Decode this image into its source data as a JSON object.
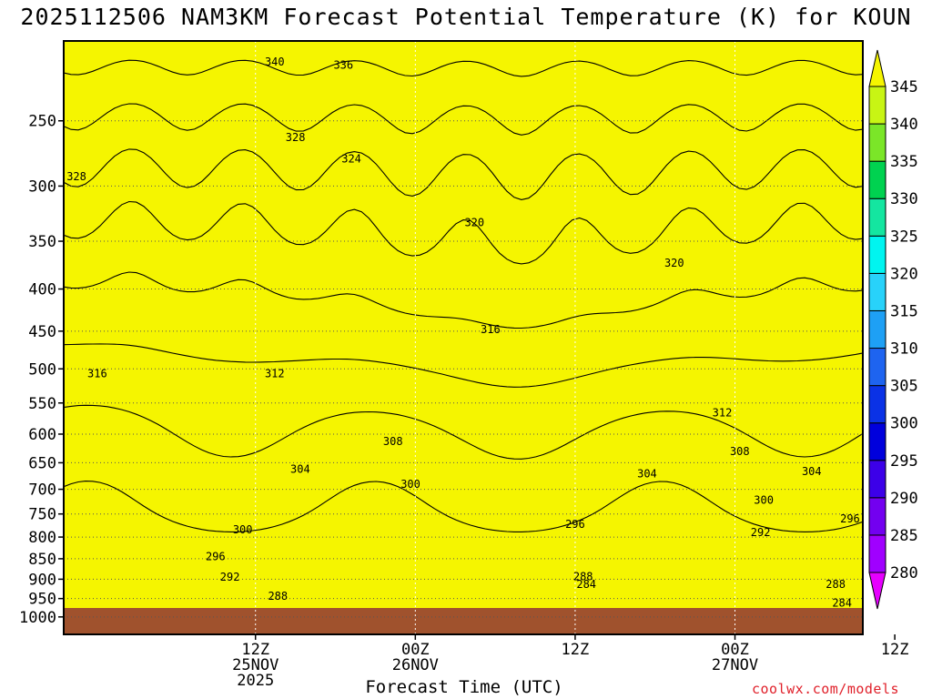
{
  "chart_data": {
    "type": "heatmap",
    "subtype": "filled-contour time-height cross section",
    "title": "2025112506 NAM3KM Forecast Potential Temperature (K) for KOUN",
    "xlabel": "Forecast Time (UTC)",
    "ylabel": "",
    "credit": "coolwx.com/models",
    "x_range_hours": [
      -6,
      44
    ],
    "x_ticks": [
      {
        "hour": 6,
        "lines": [
          "12Z",
          "25NOV",
          "2025"
        ]
      },
      {
        "hour": 16,
        "lines": [
          "00Z",
          "26NOV"
        ]
      },
      {
        "hour": 26,
        "lines": [
          "12Z"
        ]
      },
      {
        "hour": 36,
        "lines": [
          "00Z",
          "27NOV"
        ]
      },
      {
        "hour": 46,
        "lines": [
          "12Z"
        ]
      }
    ],
    "y_axis": "pressure (hPa), log scale",
    "y_range": [
      1050,
      200
    ],
    "y_ticks": [
      250,
      300,
      350,
      400,
      450,
      500,
      550,
      600,
      650,
      700,
      750,
      800,
      850,
      900,
      950,
      1000
    ],
    "ground_pressure": 970,
    "colorbar": {
      "levels": [
        280,
        285,
        290,
        295,
        300,
        305,
        310,
        315,
        320,
        325,
        330,
        335,
        340,
        345
      ],
      "labels": [
        "280",
        "285",
        "290",
        "295",
        "300",
        "305",
        "310",
        "315",
        "320",
        "325",
        "330",
        "335",
        "340",
        "345"
      ],
      "colors": [
        "#e600ff",
        "#a000ff",
        "#7300f0",
        "#3c00e8",
        "#0000dc",
        "#0a32e6",
        "#1e64f0",
        "#1ea0f5",
        "#28d2fa",
        "#00f5f0",
        "#14e6a0",
        "#00d250",
        "#7be628",
        "#c8f514",
        "#f5f500"
      ],
      "extends": "both"
    },
    "contour_interval_K": 4,
    "contour_labels": [
      {
        "value": "340",
        "hour": 7.2,
        "p": 212
      },
      {
        "value": "336",
        "hour": 11.5,
        "p": 214
      },
      {
        "value": "328",
        "hour": 8.5,
        "p": 262
      },
      {
        "value": "324",
        "hour": 12.0,
        "p": 278
      },
      {
        "value": "328",
        "hour": -5.2,
        "p": 292
      },
      {
        "value": "320",
        "hour": 19.7,
        "p": 332
      },
      {
        "value": "320",
        "hour": 32.2,
        "p": 372
      },
      {
        "value": "316",
        "hour": 20.7,
        "p": 448
      },
      {
        "value": "316",
        "hour": -3.9,
        "p": 507
      },
      {
        "value": "312",
        "hour": 7.2,
        "p": 507
      },
      {
        "value": "312",
        "hour": 35.2,
        "p": 565
      },
      {
        "value": "308",
        "hour": 14.6,
        "p": 612
      },
      {
        "value": "308",
        "hour": 36.3,
        "p": 630
      },
      {
        "value": "304",
        "hour": 8.8,
        "p": 662
      },
      {
        "value": "304",
        "hour": 30.5,
        "p": 670
      },
      {
        "value": "304",
        "hour": 40.8,
        "p": 666
      },
      {
        "value": "300",
        "hour": 15.7,
        "p": 690
      },
      {
        "value": "300",
        "hour": 37.8,
        "p": 722
      },
      {
        "value": "296",
        "hour": 26.0,
        "p": 772
      },
      {
        "value": "296",
        "hour": 43.2,
        "p": 760
      },
      {
        "value": "300",
        "hour": 5.2,
        "p": 784
      },
      {
        "value": "292",
        "hour": 37.6,
        "p": 790
      },
      {
        "value": "296",
        "hour": 3.5,
        "p": 845
      },
      {
        "value": "292",
        "hour": 4.4,
        "p": 895
      },
      {
        "value": "288",
        "hour": 26.5,
        "p": 893
      },
      {
        "value": "284",
        "hour": 26.7,
        "p": 913
      },
      {
        "value": "288",
        "hour": 42.3,
        "p": 913
      },
      {
        "value": "288",
        "hour": 7.4,
        "p": 944
      },
      {
        "value": "284",
        "hour": 42.7,
        "p": 962
      }
    ]
  }
}
